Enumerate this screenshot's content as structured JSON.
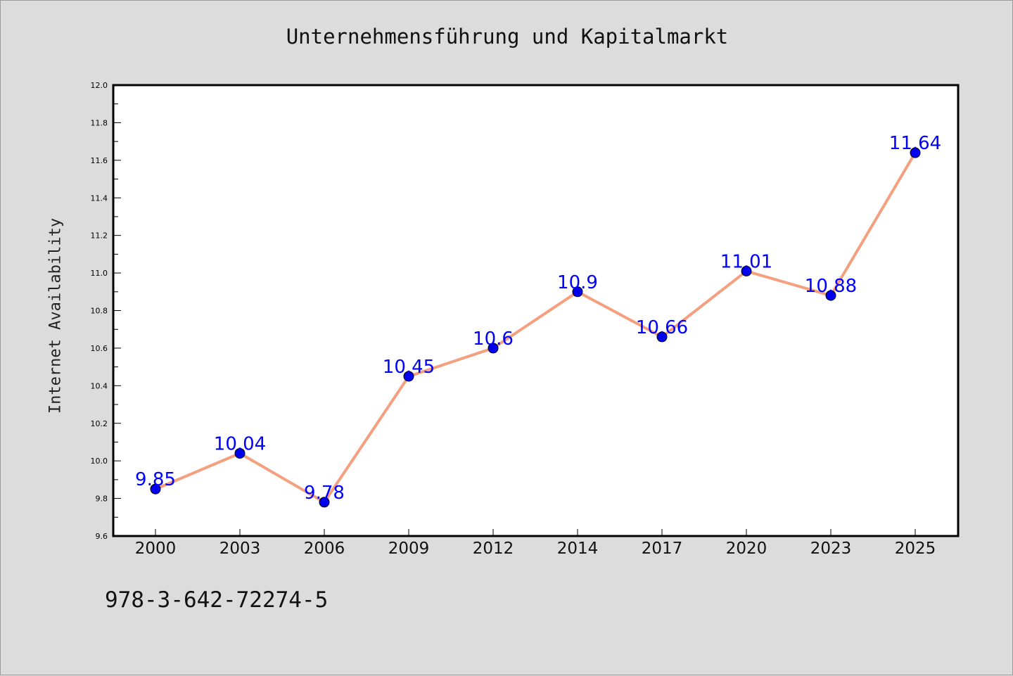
{
  "chart_data": {
    "type": "line",
    "title": "Unternehmensführung und Kapitalmarkt",
    "xlabel": "",
    "ylabel": "Internet Availability",
    "categories": [
      "2000",
      "2003",
      "2006",
      "2009",
      "2012",
      "2014",
      "2017",
      "2020",
      "2023",
      "2025"
    ],
    "series": [
      {
        "values": [
          9.85,
          10.04,
          9.78,
          10.45,
          10.6,
          10.9,
          10.66,
          11.01,
          10.88,
          11.64
        ],
        "labels": [
          "9.85",
          "10.04",
          "9.78",
          "10.45",
          "10.6",
          "10.9",
          "10.66",
          "11.01",
          "10.88",
          "11.64"
        ],
        "line_color": "#f4a07f",
        "marker_color": "#0000ee",
        "label_color": "#0000ff"
      }
    ],
    "ylim": [
      9.6,
      12.0
    ],
    "yticks": [
      "9.6",
      "9.8",
      "10.0",
      "10.2",
      "10.4",
      "10.6",
      "10.8",
      "11.0",
      "11.2",
      "11.4",
      "11.6",
      "11.8",
      "12.0"
    ],
    "grid": false,
    "legend": "none"
  },
  "footer": {
    "isbn": "978-3-642-72274-5"
  },
  "colors": {
    "background": "#dcdcdc",
    "plot_background": "#ffffff"
  }
}
